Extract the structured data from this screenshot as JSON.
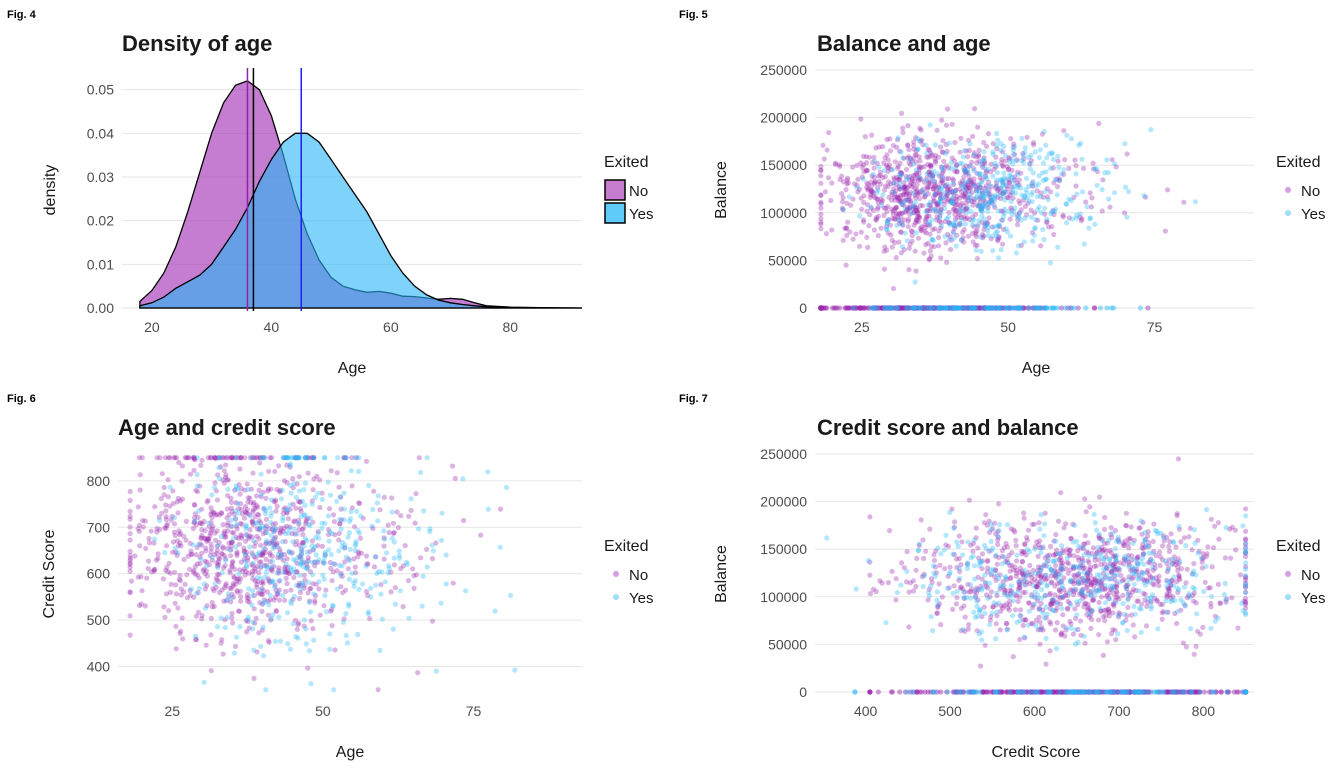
{
  "colors": {
    "no": "#9c27b0",
    "yes": "#29b6f6",
    "blend": "#3d7fdd",
    "grid": "#e6e6e6",
    "mean_no": "#8e24aa",
    "mean_yes": "#1e1ef0"
  },
  "legend": {
    "title": "Exited",
    "labels": [
      "No",
      "Yes"
    ]
  },
  "figures": {
    "fig4": {
      "label": "Fig. 4"
    },
    "fig5": {
      "label": "Fig. 5"
    },
    "fig6": {
      "label": "Fig. 6"
    },
    "fig7": {
      "label": "Fig. 7"
    }
  },
  "chart_data": [
    {
      "id": "fig4",
      "type": "area",
      "title": "Density of age",
      "xlabel": "Age",
      "ylabel": "density",
      "xlim": [
        15,
        92
      ],
      "ylim": [
        0,
        0.0545
      ],
      "xticks": [
        20,
        40,
        60,
        80
      ],
      "yticks": [
        0.0,
        0.01,
        0.02,
        0.03,
        0.04,
        0.05
      ],
      "ytick_labels": [
        "0.00",
        "0.01",
        "0.02",
        "0.03",
        "0.04",
        "0.05"
      ],
      "series": [
        {
          "name": "No",
          "x": [
            18,
            20,
            22,
            24,
            26,
            28,
            30,
            32,
            34,
            36,
            38,
            40,
            42,
            44,
            46,
            48,
            50,
            52,
            54,
            56,
            58,
            60,
            62,
            64,
            66,
            68,
            70,
            72,
            74,
            76,
            80,
            85,
            92
          ],
          "y": [
            0.0015,
            0.004,
            0.008,
            0.014,
            0.022,
            0.031,
            0.04,
            0.047,
            0.051,
            0.052,
            0.05,
            0.044,
            0.035,
            0.025,
            0.017,
            0.011,
            0.007,
            0.005,
            0.0042,
            0.0036,
            0.0038,
            0.0034,
            0.0027,
            0.0026,
            0.0023,
            0.002,
            0.0022,
            0.002,
            0.0012,
            0.0005,
            0.0002,
            0.0001,
            0.0
          ]
        },
        {
          "name": "Yes",
          "x": [
            18,
            20,
            22,
            24,
            26,
            28,
            30,
            32,
            34,
            36,
            38,
            40,
            42,
            44,
            46,
            48,
            50,
            52,
            54,
            56,
            58,
            60,
            62,
            64,
            66,
            68,
            70,
            72,
            74,
            76,
            80,
            85,
            92
          ],
          "y": [
            0.0005,
            0.0012,
            0.0025,
            0.0045,
            0.006,
            0.0075,
            0.01,
            0.014,
            0.018,
            0.023,
            0.029,
            0.034,
            0.038,
            0.04,
            0.04,
            0.038,
            0.034,
            0.03,
            0.026,
            0.022,
            0.017,
            0.012,
            0.008,
            0.005,
            0.003,
            0.0018,
            0.0012,
            0.0008,
            0.0005,
            0.0003,
            0.0001,
            5e-05,
            0.0
          ]
        }
      ],
      "mean_lines": [
        {
          "name": "No",
          "x": 36.0
        },
        {
          "name": "Yes",
          "x": 45.0
        },
        {
          "name": "overall",
          "x": 37.0
        }
      ]
    },
    {
      "id": "fig5",
      "type": "scatter",
      "title": "Balance and age",
      "xlabel": "Age",
      "ylabel": "Balance",
      "xlim": [
        17,
        92
      ],
      "ylim": [
        0,
        250000
      ],
      "xticks": [
        25,
        50,
        75
      ],
      "yticks": [
        0,
        50000,
        100000,
        150000,
        200000,
        250000
      ],
      "series": [
        {
          "name": "No",
          "x_range": [
            18,
            92
          ],
          "x_center": 36,
          "x_spread": 9,
          "y_center": 120000,
          "y_spread": 30000,
          "zero_fraction": 0.36
        },
        {
          "name": "Yes",
          "x_range": [
            18,
            84
          ],
          "x_center": 45,
          "x_spread": 9,
          "y_center": 120000,
          "y_spread": 30000,
          "zero_fraction": 0.25
        }
      ]
    },
    {
      "id": "fig6",
      "type": "scatter",
      "title": "Age and credit score",
      "xlabel": "Age",
      "ylabel": "Credit Score",
      "xlim": [
        16,
        93
      ],
      "ylim": [
        345,
        858
      ],
      "xticks": [
        25,
        50,
        75
      ],
      "yticks": [
        400,
        500,
        600,
        700,
        800
      ],
      "series": [
        {
          "name": "No",
          "x_range": [
            18,
            92
          ],
          "x_center": 36,
          "x_spread": 9,
          "y_center": 651,
          "y_spread": 95,
          "y_max": 850
        },
        {
          "name": "Yes",
          "x_range": [
            18,
            84
          ],
          "x_center": 45,
          "x_spread": 9,
          "y_center": 645,
          "y_spread": 100,
          "y_max": 850
        }
      ]
    },
    {
      "id": "fig7",
      "type": "scatter",
      "title": "Credit score and balance",
      "xlabel": "Credit Score",
      "ylabel": "Balance",
      "xlim": [
        340,
        860
      ],
      "ylim": [
        0,
        250000
      ],
      "xticks": [
        400,
        500,
        600,
        700,
        800
      ],
      "yticks": [
        0,
        50000,
        100000,
        150000,
        200000,
        250000
      ],
      "series": [
        {
          "name": "No",
          "x_range": [
            405,
            850
          ],
          "x_center": 651,
          "x_spread": 95,
          "y_center": 120000,
          "y_spread": 30000,
          "zero_fraction": 0.36
        },
        {
          "name": "Yes",
          "x_range": [
            350,
            850
          ],
          "x_center": 645,
          "x_spread": 100,
          "y_center": 120000,
          "y_spread": 30000,
          "zero_fraction": 0.25
        }
      ]
    }
  ]
}
